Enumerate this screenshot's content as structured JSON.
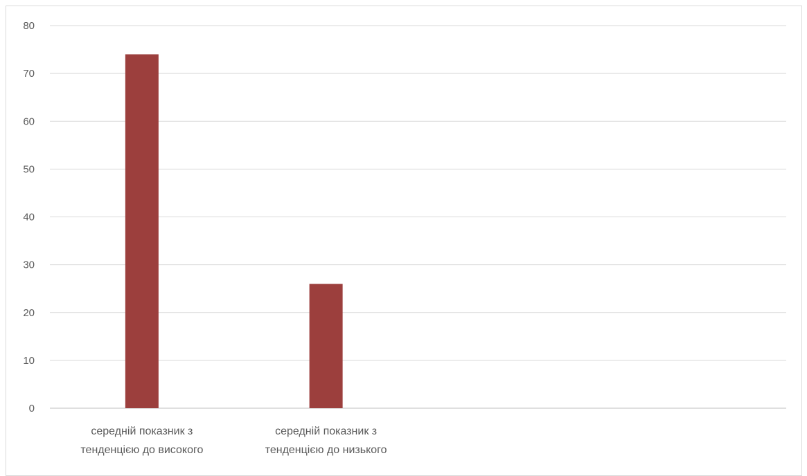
{
  "chart_data": {
    "type": "bar",
    "categories": [
      [
        "середній показник з",
        "тенденцією до високого"
      ],
      [
        "середній показник з",
        "тенденцією до низького"
      ],
      [
        "",
        ""
      ],
      [
        "",
        ""
      ]
    ],
    "values": [
      74,
      26,
      null,
      null
    ],
    "ylim": [
      0,
      80
    ],
    "yticks": [
      "0",
      "10",
      "20",
      "30",
      "40",
      "50",
      "60",
      "70",
      "80"
    ],
    "grid": true,
    "legend": "none",
    "bar_color": "#9c3f3d",
    "grid_color": "#d9d9d9",
    "axis_color": "#bfbfbf"
  }
}
